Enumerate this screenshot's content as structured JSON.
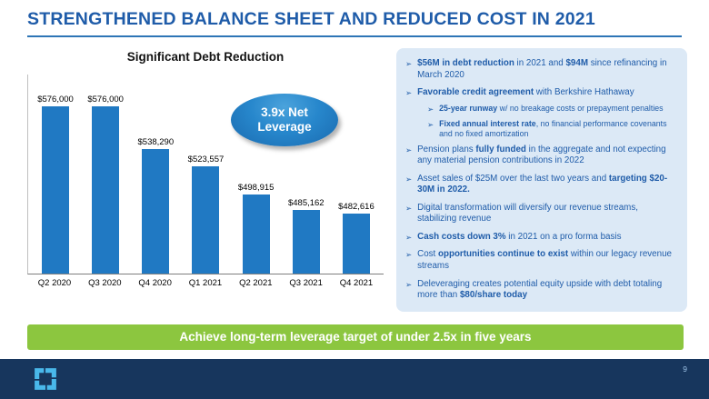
{
  "slide": {
    "title": "STRENGTHENED BALANCE SHEET AND REDUCED COST IN 2021"
  },
  "chart_data": {
    "type": "bar",
    "title": "Significant Debt Reduction",
    "categories": [
      "Q2 2020",
      "Q3 2020",
      "Q4 2020",
      "Q1 2021",
      "Q2 2021",
      "Q3 2021",
      "Q4 2021"
    ],
    "values": [
      576000,
      576000,
      538290,
      523557,
      498915,
      485162,
      482616
    ],
    "labels": [
      "$576,000",
      "$576,000",
      "$538,290",
      "$523,557",
      "$498,915",
      "$485,162",
      "$482,616"
    ],
    "xlabel": "",
    "ylabel": "",
    "ylim": [
      430000,
      590000
    ],
    "grid": false,
    "legend": "none",
    "bar_color": "#2079C3",
    "callout_label": "3.9x Net Leverage"
  },
  "highlights": {
    "bullet_glyph": "➢",
    "bullets": [
      {
        "level": 1,
        "segments": [
          {
            "t": "$56M in debt reduction",
            "b": true
          },
          {
            "t": " in 2021 and ",
            "b": false
          },
          {
            "t": "$94M",
            "b": true
          },
          {
            "t": " since refinancing in March 2020",
            "b": false
          }
        ]
      },
      {
        "level": 1,
        "segments": [
          {
            "t": "Favorable credit agreement",
            "b": true
          },
          {
            "t": " with Berkshire Hathaway",
            "b": false
          }
        ]
      },
      {
        "level": 2,
        "segments": [
          {
            "t": "25-year runway",
            "b": true
          },
          {
            "t": " w/ no breakage costs or prepayment penalties",
            "b": false
          }
        ]
      },
      {
        "level": 2,
        "segments": [
          {
            "t": "Fixed annual interest rate",
            "b": true
          },
          {
            "t": ", no financial performance covenants and no fixed amortization",
            "b": false
          }
        ]
      },
      {
        "level": 1,
        "segments": [
          {
            "t": "Pension plans ",
            "b": false
          },
          {
            "t": "fully funded",
            "b": true
          },
          {
            "t": " in the aggregate and not expecting any material pension contributions in 2022",
            "b": false
          }
        ]
      },
      {
        "level": 1,
        "segments": [
          {
            "t": "Asset sales of $25M over the last two years and ",
            "b": false
          },
          {
            "t": "targeting $20-30M in 2022.",
            "b": true
          }
        ]
      },
      {
        "level": 1,
        "segments": [
          {
            "t": "Digital transformation will diversify our revenue streams, stabilizing revenue",
            "b": false
          }
        ]
      },
      {
        "level": 1,
        "segments": [
          {
            "t": "Cash costs down 3%",
            "b": true
          },
          {
            "t": " in 2021 on a pro forma basis",
            "b": false
          }
        ]
      },
      {
        "level": 1,
        "segments": [
          {
            "t": "Cost ",
            "b": false
          },
          {
            "t": "opportunities continue to exist",
            "b": true
          },
          {
            "t": " within our legacy revenue streams",
            "b": false
          }
        ]
      },
      {
        "level": 1,
        "segments": [
          {
            "t": "Deleveraging creates potential equity upside with debt totaling more than ",
            "b": false
          },
          {
            "t": "$80/share today",
            "b": true
          }
        ]
      }
    ]
  },
  "banner": {
    "text": "Achieve long-term leverage target of under 2.5x in five years"
  },
  "footer": {
    "page_number": "9"
  },
  "colors": {
    "title_blue": "#1F5CA9",
    "bar_blue": "#2079C3",
    "panel_blue": "#DCE9F6",
    "banner_green": "#8CC63F",
    "footer_navy": "#17365D",
    "logo_blue": "#49B8EA"
  }
}
